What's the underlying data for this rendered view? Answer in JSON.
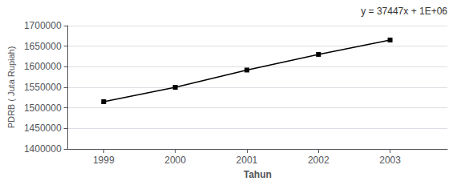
{
  "chart_data": {
    "type": "line",
    "x": [
      1999,
      2000,
      2001,
      2002,
      2003
    ],
    "values": [
      1515000,
      1550000,
      1592000,
      1630000,
      1665000
    ],
    "xlabel": "Tahun",
    "ylabel": "PDRB ( Juta Rupiah)",
    "annotation": "y = 37447x + 1E+06",
    "xlim": [
      1998.5,
      2003.8
    ],
    "xticks": [
      1999,
      2000,
      2001,
      2002,
      2003
    ],
    "ylim": [
      1400000,
      1700000
    ],
    "yticks": [
      1400000,
      1450000,
      1500000,
      1550000,
      1600000,
      1650000,
      1700000
    ],
    "grid": true,
    "color": "#000000",
    "marker": "square"
  }
}
